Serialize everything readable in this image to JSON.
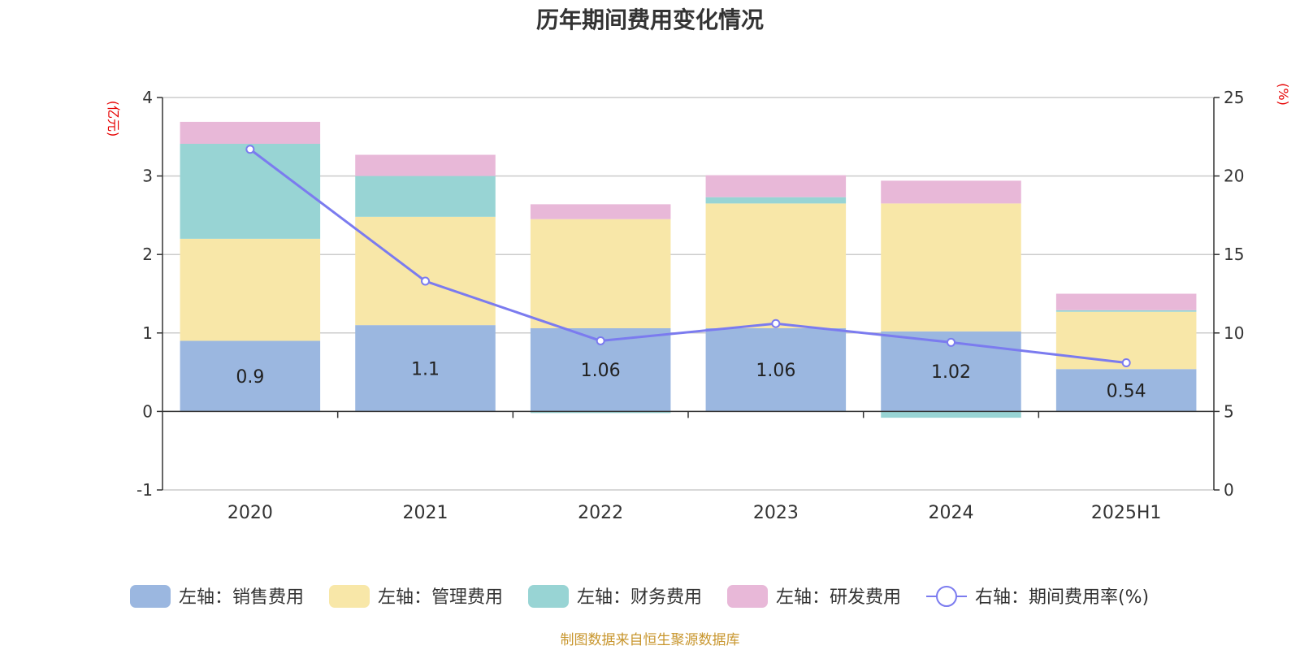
{
  "chart_data": {
    "type": "bar",
    "title": "历年期间费用变化情况",
    "categories": [
      "2020",
      "2021",
      "2022",
      "2023",
      "2024",
      "2025H1"
    ],
    "left_axis": {
      "unit": "(亿元)",
      "ylim": [
        -1,
        4
      ],
      "ticks": [
        "-1",
        "0",
        "1",
        "2",
        "3",
        "4"
      ]
    },
    "right_axis": {
      "unit": "(%)",
      "ylim": [
        0,
        25
      ],
      "ticks": [
        "0",
        "5",
        "10",
        "15",
        "20",
        "25"
      ]
    },
    "series": [
      {
        "name": "左轴：销售费用",
        "color": "#9bb7e0",
        "axis": "left",
        "stack": true,
        "values": [
          0.9,
          1.1,
          1.06,
          1.06,
          1.02,
          0.54
        ],
        "labels": [
          "0.9",
          "1.1",
          "1.06",
          "1.06",
          "1.02",
          "0.54"
        ]
      },
      {
        "name": "左轴：管理费用",
        "color": "#f8e7a8",
        "axis": "left",
        "stack": true,
        "values": [
          1.3,
          1.38,
          1.39,
          1.59,
          1.63,
          0.73
        ]
      },
      {
        "name": "左轴：财务费用",
        "color": "#98d4d4",
        "axis": "left",
        "stack": true,
        "values": [
          1.21,
          0.52,
          -0.02,
          0.08,
          -0.08,
          0.02
        ]
      },
      {
        "name": "左轴：研发费用",
        "color": "#e8b8d8",
        "axis": "left",
        "stack": true,
        "values": [
          0.28,
          0.27,
          0.19,
          0.28,
          0.29,
          0.21
        ]
      },
      {
        "name": "右轴：期间费用率(%)",
        "color": "#7b7bef",
        "axis": "right",
        "type": "line",
        "values": [
          21.7,
          13.3,
          9.5,
          10.6,
          9.4,
          8.1
        ]
      }
    ],
    "grid": true,
    "legend_position": "bottom"
  },
  "footer": "制图数据来自恒生聚源数据库"
}
